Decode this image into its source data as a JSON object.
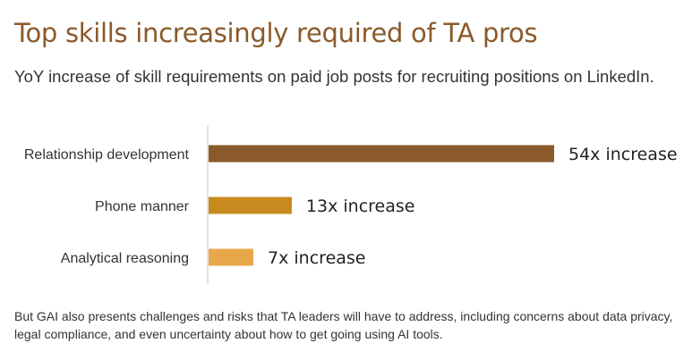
{
  "title": "Top skills increasingly required of TA pros",
  "subtitle": "YoY increase of skill requirements on paid job posts for recruiting positions on LinkedIn.",
  "footer": "But GAI also presents challenges and risks that TA leaders will have to address, including concerns about data privacy, legal compliance, and even uncertainty about how to get going using AI tools.",
  "chart_data": {
    "type": "bar",
    "orientation": "horizontal",
    "categories": [
      "Relationship development",
      "Phone manner",
      "Analytical reasoning"
    ],
    "values": [
      54,
      13,
      7
    ],
    "data_labels": [
      "54x increase",
      "13x increase",
      "7x increase"
    ],
    "colors": [
      "#8b5a2b",
      "#c88a1e",
      "#e8a84a"
    ],
    "grid": false,
    "legend": "none"
  }
}
